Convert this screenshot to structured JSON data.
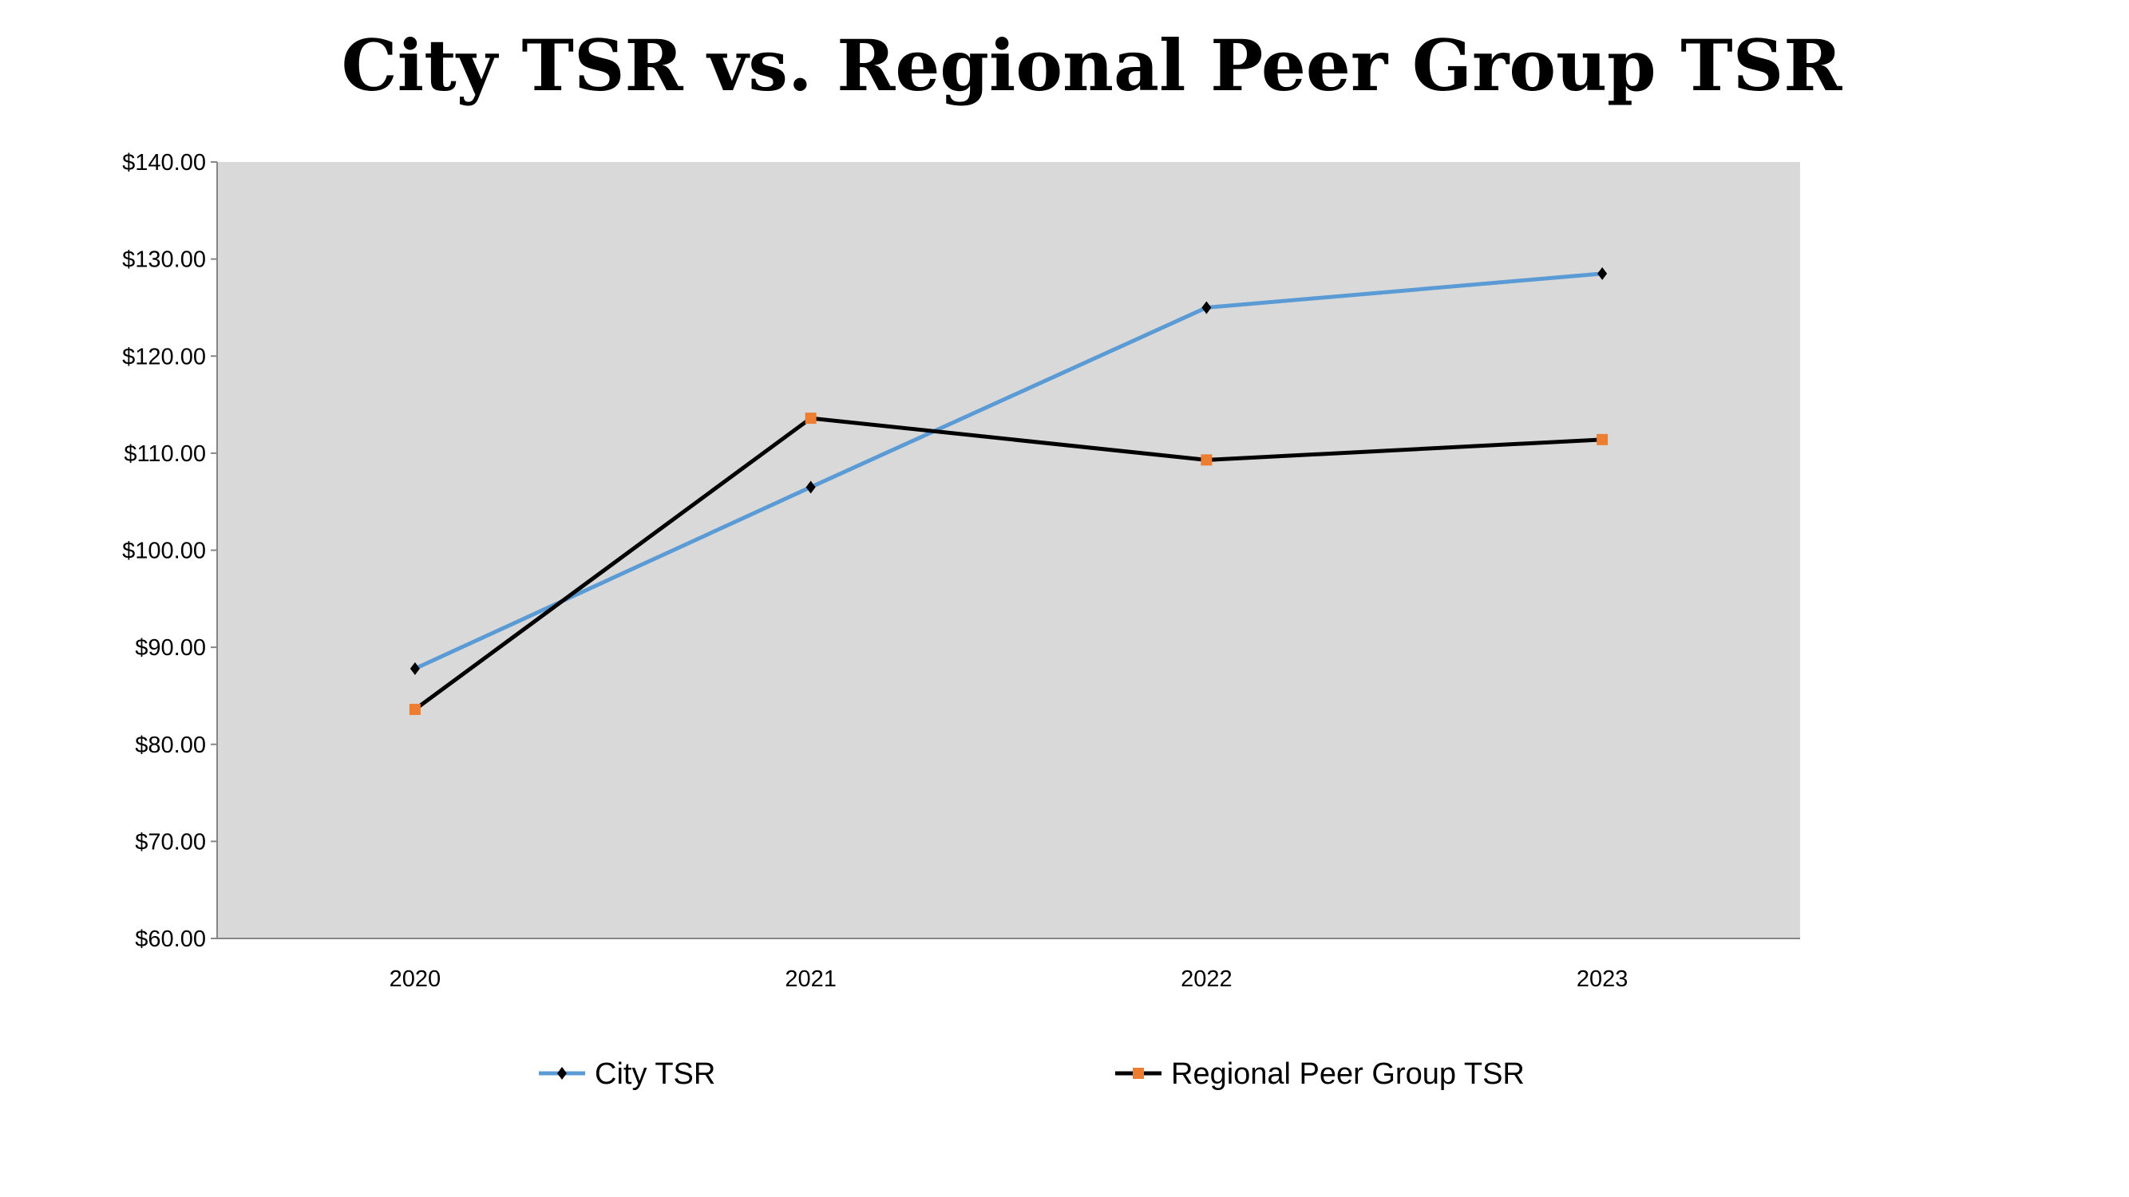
{
  "chart_data": {
    "type": "line",
    "title": "City TSR vs. Regional Peer Group TSR",
    "categories": [
      "2020",
      "2021",
      "2022",
      "2023"
    ],
    "series": [
      {
        "name": "City TSR",
        "values": [
          87.8,
          106.5,
          125.0,
          128.5
        ],
        "color": "#5b9bd5",
        "marker": "diamond",
        "marker_color": "#000000"
      },
      {
        "name": "Regional Peer Group TSR",
        "values": [
          83.6,
          113.6,
          109.3,
          111.4
        ],
        "color": "#000000",
        "marker": "square",
        "marker_color": "#ed7d31"
      }
    ],
    "ylim": [
      60,
      140
    ],
    "yticks": [
      60,
      70,
      80,
      90,
      100,
      110,
      120,
      130,
      140
    ],
    "ytick_format": "$0.00",
    "plot_background": "#d9d9d9",
    "grid": false,
    "legend": "bottom"
  }
}
